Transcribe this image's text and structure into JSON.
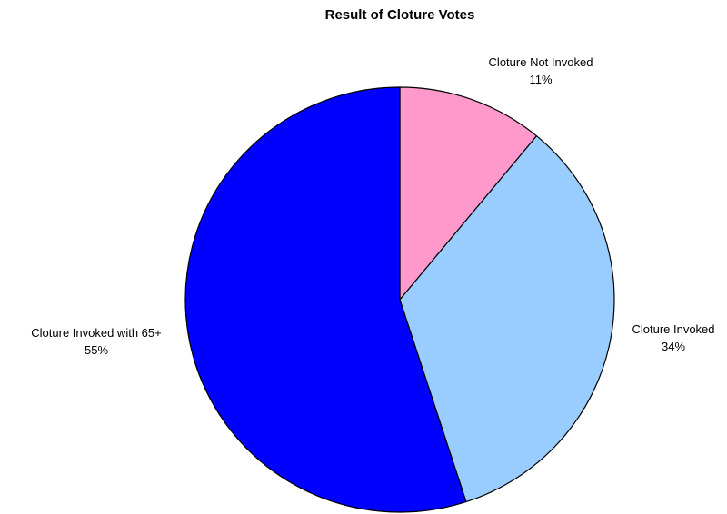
{
  "chart_data": {
    "type": "pie",
    "title": "Result of Cloture Votes",
    "slices": [
      {
        "label": "Cloture Not Invoked",
        "value": 11,
        "display": "11%",
        "color": "#ff99cc"
      },
      {
        "label": "Cloture Invoked",
        "value": 34,
        "display": "34%",
        "color": "#99ccff"
      },
      {
        "label": "Cloture Invoked with 65+",
        "value": 55,
        "display": "55%",
        "color": "#0000ff"
      }
    ],
    "start_angle": "12 o'clock",
    "direction": "clockwise",
    "legend": "none"
  }
}
